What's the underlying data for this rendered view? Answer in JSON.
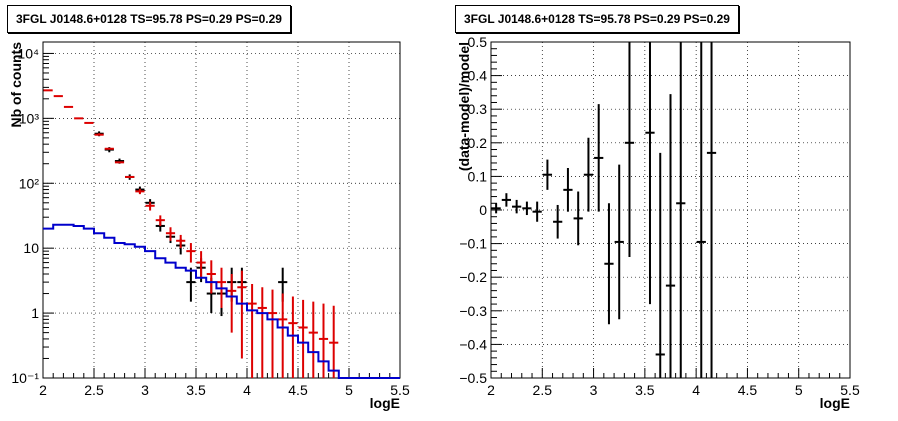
{
  "chart_data": [
    {
      "type": "step-histogram",
      "title": "3FGL J0148.6+0128 TS=95.78 PS=0.29 PS=0.29",
      "xlabel": "logE",
      "ylabel": "Nb of counts",
      "xlim": [
        2,
        5.5
      ],
      "ylim": [
        0.1,
        15000
      ],
      "yscale": "log",
      "grid": true,
      "x_ticks": [
        "2",
        "2.5",
        "3",
        "3.5",
        "4",
        "4.5",
        "5",
        "5.5"
      ],
      "y_ticks": [
        "10⁻¹",
        "1",
        "10",
        "10²",
        "10³",
        "10⁴"
      ],
      "y_tick_values": [
        0.1,
        1,
        10,
        100,
        1000,
        10000
      ],
      "bins": {
        "start": 2.0,
        "width": 0.1
      },
      "series": [
        {
          "color": "#000000",
          "style": "errorbar",
          "points": [
            {
              "x": 2.55,
              "y": 580,
              "lo": 530,
              "hi": 630
            },
            {
              "x": 2.65,
              "y": 330,
              "lo": 300,
              "hi": 360
            },
            {
              "x": 2.75,
              "y": 220,
              "lo": 200,
              "hi": 240
            },
            {
              "x": 2.85,
              "y": 125,
              "lo": 113,
              "hi": 137
            },
            {
              "x": 2.95,
              "y": 80,
              "lo": 71,
              "hi": 89
            },
            {
              "x": 3.05,
              "y": 50,
              "lo": 43,
              "hi": 57
            },
            {
              "x": 3.15,
              "y": 22,
              "lo": 18,
              "hi": 26
            },
            {
              "x": 3.25,
              "y": 15,
              "lo": 12,
              "hi": 19
            },
            {
              "x": 3.35,
              "y": 11,
              "lo": 8,
              "hi": 14
            },
            {
              "x": 3.45,
              "y": 3,
              "lo": 1.5,
              "hi": 5
            },
            {
              "x": 3.55,
              "y": 5,
              "lo": 3,
              "hi": 7
            },
            {
              "x": 3.65,
              "y": 2,
              "lo": 1,
              "hi": 3.5
            },
            {
              "x": 3.75,
              "y": 2,
              "lo": 0.9,
              "hi": 3.5
            },
            {
              "x": 3.85,
              "y": 3,
              "lo": 1.5,
              "hi": 5
            },
            {
              "x": 3.95,
              "y": 3,
              "lo": 1.5,
              "hi": 5
            },
            {
              "x": 4.35,
              "y": 3,
              "lo": 1.5,
              "hi": 5
            }
          ]
        },
        {
          "color": "#dd0000",
          "style": "errorbar",
          "points": [
            {
              "x": 2.05,
              "y": 2700,
              "lo": 2700,
              "hi": 2700
            },
            {
              "x": 2.15,
              "y": 2200,
              "lo": 2200,
              "hi": 2200
            },
            {
              "x": 2.25,
              "y": 1500,
              "lo": 1500,
              "hi": 1500
            },
            {
              "x": 2.35,
              "y": 1000,
              "lo": 1000,
              "hi": 1000
            },
            {
              "x": 2.45,
              "y": 850,
              "lo": 850,
              "hi": 850
            },
            {
              "x": 2.55,
              "y": 560,
              "lo": 540,
              "hi": 590
            },
            {
              "x": 2.65,
              "y": 340,
              "lo": 330,
              "hi": 350
            },
            {
              "x": 2.75,
              "y": 210,
              "lo": 205,
              "hi": 215
            },
            {
              "x": 2.85,
              "y": 125,
              "lo": 120,
              "hi": 130
            },
            {
              "x": 2.95,
              "y": 75,
              "lo": 68,
              "hi": 82
            },
            {
              "x": 3.05,
              "y": 45,
              "lo": 38,
              "hi": 52
            },
            {
              "x": 3.15,
              "y": 27,
              "lo": 22,
              "hi": 32
            },
            {
              "x": 3.25,
              "y": 17,
              "lo": 13,
              "hi": 21
            },
            {
              "x": 3.35,
              "y": 13,
              "lo": 10,
              "hi": 16
            },
            {
              "x": 3.45,
              "y": 9,
              "lo": 6,
              "hi": 12
            },
            {
              "x": 3.55,
              "y": 6,
              "lo": 3.5,
              "hi": 9
            },
            {
              "x": 3.65,
              "y": 4,
              "lo": 2,
              "hi": 6.5
            },
            {
              "x": 3.75,
              "y": 3,
              "lo": 1.2,
              "hi": 5
            },
            {
              "x": 3.85,
              "y": 2.2,
              "lo": 0.5,
              "hi": 4
            },
            {
              "x": 3.95,
              "y": 2.5,
              "lo": 0.2,
              "hi": 4.5
            },
            {
              "x": 4.05,
              "y": 1.4,
              "lo": 0.1,
              "hi": 2.8
            },
            {
              "x": 4.15,
              "y": 1.2,
              "lo": 0.1,
              "hi": 2.5
            },
            {
              "x": 4.25,
              "y": 1,
              "lo": 0.1,
              "hi": 2.3
            },
            {
              "x": 4.35,
              "y": 0.8,
              "lo": 0.1,
              "hi": 2.0
            },
            {
              "x": 4.45,
              "y": 0.7,
              "lo": 0.1,
              "hi": 1.8
            },
            {
              "x": 4.55,
              "y": 0.6,
              "lo": 0.1,
              "hi": 1.6
            },
            {
              "x": 4.65,
              "y": 0.5,
              "lo": 0.1,
              "hi": 1.5
            },
            {
              "x": 4.75,
              "y": 0.4,
              "lo": 0.1,
              "hi": 1.4
            },
            {
              "x": 4.85,
              "y": 0.35,
              "lo": 0.1,
              "hi": 1.3
            }
          ]
        },
        {
          "color": "#0000cc",
          "style": "step",
          "values": [
            20,
            23,
            23,
            22,
            20,
            17,
            14.5,
            12,
            11.5,
            10.5,
            9,
            7,
            6,
            5,
            4.5,
            3.5,
            3,
            2.4,
            1.8,
            1.4,
            1.1,
            1.0,
            0.8,
            0.6,
            0.45,
            0.35,
            0.25,
            0.18,
            0.13,
            0.1,
            0.1,
            0.1,
            0.1,
            0.1,
            0.1
          ]
        }
      ]
    },
    {
      "type": "scatter-errorbar",
      "title": "3FGL J0148.6+0128 TS=95.78 PS=0.29 PS=0.29",
      "xlabel": "logE",
      "ylabel": "(data-model)/model",
      "xlim": [
        2,
        5.5
      ],
      "ylim": [
        -0.5,
        0.5
      ],
      "grid": true,
      "x_ticks": [
        "2",
        "2.5",
        "3",
        "3.5",
        "4",
        "4.5",
        "5",
        "5.5"
      ],
      "y_ticks": [
        "−0.5",
        "−0.4",
        "−0.3",
        "−0.2",
        "−0.1",
        "0",
        "0.1",
        "0.2",
        "0.3",
        "0.4",
        "0.5"
      ],
      "y_tick_values": [
        -0.5,
        -0.4,
        -0.3,
        -0.2,
        -0.1,
        0,
        0.1,
        0.2,
        0.3,
        0.4,
        0.5
      ],
      "series": [
        {
          "color": "#000000",
          "points": [
            {
              "x": 2.05,
              "y": 0.005,
              "err": 0.015
            },
            {
              "x": 2.15,
              "y": 0.03,
              "err": 0.02
            },
            {
              "x": 2.25,
              "y": 0.01,
              "err": 0.02
            },
            {
              "x": 2.35,
              "y": 0.005,
              "err": 0.02
            },
            {
              "x": 2.45,
              "y": -0.005,
              "err": 0.03
            },
            {
              "x": 2.55,
              "y": 0.105,
              "err": 0.045
            },
            {
              "x": 2.65,
              "y": -0.035,
              "err": 0.05
            },
            {
              "x": 2.75,
              "y": 0.06,
              "err": 0.065
            },
            {
              "x": 2.85,
              "y": -0.025,
              "err": 0.08
            },
            {
              "x": 2.95,
              "y": 0.105,
              "err": 0.11
            },
            {
              "x": 3.05,
              "y": 0.155,
              "err": 0.16
            },
            {
              "x": 3.15,
              "y": -0.16,
              "err": 0.18
            },
            {
              "x": 3.25,
              "y": -0.095,
              "err": 0.23
            },
            {
              "x": 3.35,
              "y": 0.2,
              "err": 0.34
            },
            {
              "x": 3.55,
              "y": 0.23,
              "err": 0.51
            },
            {
              "x": 3.65,
              "y": -0.43,
              "err": 0.6
            },
            {
              "x": 3.75,
              "y": -0.225,
              "err": 0.57
            },
            {
              "x": 3.85,
              "y": 0.02,
              "err": 0.55
            },
            {
              "x": 4.05,
              "y": -0.095,
              "err": 0.7
            },
            {
              "x": 4.15,
              "y": 0.17,
              "err": 0.8
            }
          ]
        }
      ]
    }
  ]
}
